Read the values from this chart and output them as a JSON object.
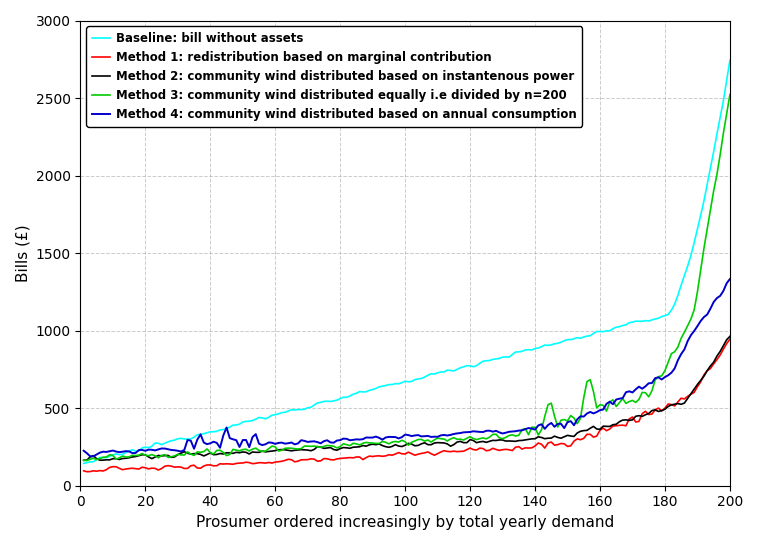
{
  "n_points": 200,
  "xlabel": "Prosumer ordered increasingly by total yearly demand",
  "ylabel": "Bills (£)",
  "xlim": [
    0,
    200
  ],
  "ylim": [
    0,
    3000
  ],
  "xticks": [
    0,
    20,
    40,
    60,
    80,
    100,
    120,
    140,
    160,
    180,
    200
  ],
  "yticks": [
    0,
    500,
    1000,
    1500,
    2000,
    2500,
    3000
  ],
  "legend_entries": [
    "Baseline: bill without assets",
    "Method 1: redistribution based on marginal contribution",
    "Method 2: community wind distributed based on instantenous power",
    "Method 3: community wind distributed equally i.e divided by n=200",
    "Method 4: community wind distributed based on annual consumption"
  ],
  "colors": [
    "#00FFFF",
    "#FF0000",
    "#000000",
    "#00CC00",
    "#0000CC"
  ],
  "line_widths": [
    1.2,
    1.2,
    1.2,
    1.2,
    1.4
  ],
  "background_color": "#FFFFFF",
  "grid_color": "#AAAAAA",
  "legend_fontsize": 8.5,
  "axis_fontsize": 11,
  "tick_fontsize": 10
}
